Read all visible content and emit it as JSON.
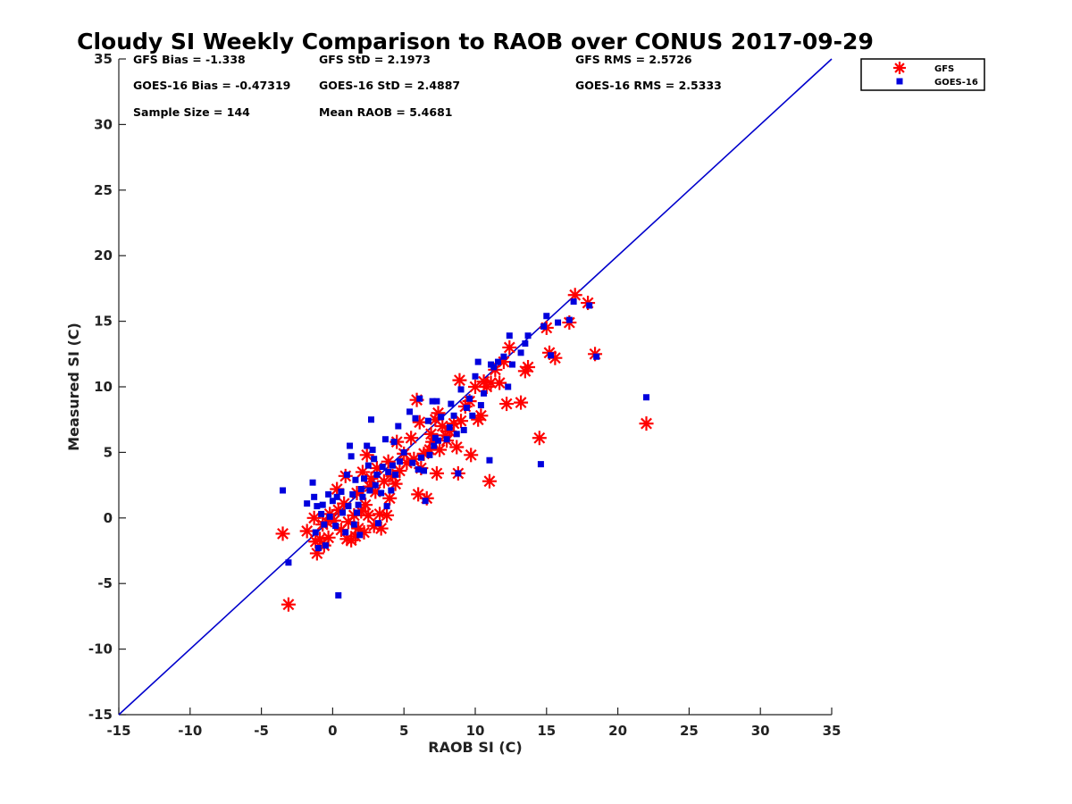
{
  "chart_data": {
    "type": "scatter",
    "title": "Cloudy SI Weekly Comparison to RAOB over CONUS 2017-09-29",
    "xlabel": "RAOB SI (C)",
    "ylabel": "Measured SI (C)",
    "xlim": [
      -15,
      35
    ],
    "ylim": [
      -15,
      35
    ],
    "xticks": [
      -15,
      -10,
      -5,
      0,
      5,
      10,
      15,
      20,
      25,
      30,
      35
    ],
    "yticks": [
      -15,
      -10,
      -5,
      0,
      5,
      10,
      15,
      20,
      25,
      30,
      35
    ],
    "grid": false,
    "legend_position": "outside-top-right",
    "reference_line": {
      "from": [
        -15,
        -15
      ],
      "to": [
        35,
        35
      ],
      "color": "#0000cc"
    },
    "stats": [
      "GFS Bias = -1.338",
      "GFS StD = 2.1973",
      "GFS RMS = 2.5726",
      "GOES-16 Bias = -0.47319",
      "GOES-16 StD = 2.4887",
      "GOES-16 RMS = 2.5333",
      "Sample Size = 144",
      "Mean RAOB = 5.4681"
    ],
    "series": [
      {
        "name": "GFS",
        "marker": "asterisk",
        "color": "#ff0000",
        "points": [
          [
            -3.5,
            -1.2
          ],
          [
            -3.1,
            -6.6
          ],
          [
            -1.8,
            -1.0
          ],
          [
            -1.3,
            0.0
          ],
          [
            -1.2,
            -1.8
          ],
          [
            -1.1,
            -2.7
          ],
          [
            -0.9,
            -1.6
          ],
          [
            -0.7,
            -0.5
          ],
          [
            -0.6,
            -2.1
          ],
          [
            -0.4,
            -0.3
          ],
          [
            -0.3,
            -1.5
          ],
          [
            -0.2,
            0.3
          ],
          [
            0.1,
            -0.2
          ],
          [
            0.3,
            2.2
          ],
          [
            0.4,
            0.6
          ],
          [
            0.6,
            -0.9
          ],
          [
            0.8,
            1.1
          ],
          [
            0.9,
            3.2
          ],
          [
            1.0,
            -1.6
          ],
          [
            1.1,
            -0.3
          ],
          [
            1.3,
            -1.7
          ],
          [
            1.5,
            0.2
          ],
          [
            1.6,
            -1.4
          ],
          [
            1.7,
            1.9
          ],
          [
            1.8,
            -0.8
          ],
          [
            2.0,
            0.5
          ],
          [
            2.1,
            3.5
          ],
          [
            2.2,
            -1.1
          ],
          [
            2.3,
            1.0
          ],
          [
            2.4,
            4.8
          ],
          [
            2.5,
            0.2
          ],
          [
            2.6,
            2.4
          ],
          [
            2.7,
            3.0
          ],
          [
            2.9,
            -0.6
          ],
          [
            3.0,
            2.0
          ],
          [
            3.1,
            3.8
          ],
          [
            3.3,
            0.3
          ],
          [
            3.4,
            -0.8
          ],
          [
            3.6,
            2.8
          ],
          [
            3.8,
            0.2
          ],
          [
            3.9,
            4.3
          ],
          [
            4.0,
            1.5
          ],
          [
            4.2,
            3.2
          ],
          [
            4.4,
            2.6
          ],
          [
            4.5,
            5.8
          ],
          [
            4.7,
            3.6
          ],
          [
            5.0,
            4.9
          ],
          [
            5.2,
            4.2
          ],
          [
            5.5,
            6.1
          ],
          [
            5.7,
            4.5
          ],
          [
            5.9,
            9.0
          ],
          [
            6.0,
            1.8
          ],
          [
            6.1,
            7.3
          ],
          [
            6.2,
            3.8
          ],
          [
            6.4,
            4.9
          ],
          [
            6.6,
            1.5
          ],
          [
            6.8,
            5.2
          ],
          [
            6.9,
            6.4
          ],
          [
            7.0,
            5.8
          ],
          [
            7.2,
            7.5
          ],
          [
            7.3,
            3.4
          ],
          [
            7.4,
            8.0
          ],
          [
            7.5,
            5.2
          ],
          [
            7.7,
            7.0
          ],
          [
            7.9,
            6.3
          ],
          [
            8.0,
            5.9
          ],
          [
            8.2,
            6.6
          ],
          [
            8.5,
            7.2
          ],
          [
            8.7,
            5.4
          ],
          [
            8.8,
            3.4
          ],
          [
            8.9,
            10.5
          ],
          [
            9.0,
            7.4
          ],
          [
            9.3,
            8.5
          ],
          [
            9.6,
            8.9
          ],
          [
            9.7,
            4.8
          ],
          [
            10.0,
            10.0
          ],
          [
            10.2,
            7.5
          ],
          [
            10.4,
            7.8
          ],
          [
            10.6,
            10.4
          ],
          [
            10.8,
            10.0
          ],
          [
            11.0,
            2.8
          ],
          [
            11.1,
            10.3
          ],
          [
            11.4,
            11.3
          ],
          [
            11.7,
            10.3
          ],
          [
            12.0,
            11.9
          ],
          [
            12.2,
            8.7
          ],
          [
            12.4,
            13.0
          ],
          [
            13.2,
            8.8
          ],
          [
            13.5,
            11.2
          ],
          [
            13.7,
            11.5
          ],
          [
            14.5,
            6.1
          ],
          [
            15.0,
            14.5
          ],
          [
            15.2,
            12.6
          ],
          [
            15.6,
            12.2
          ],
          [
            16.6,
            14.9
          ],
          [
            17.0,
            17.0
          ],
          [
            17.9,
            16.4
          ],
          [
            18.4,
            12.5
          ],
          [
            22.0,
            7.2
          ]
        ]
      },
      {
        "name": "GOES-16",
        "marker": "square",
        "color": "#0000dd",
        "points": [
          [
            -3.5,
            2.1
          ],
          [
            -3.1,
            -3.4
          ],
          [
            -1.8,
            1.1
          ],
          [
            -1.4,
            2.7
          ],
          [
            -1.3,
            1.6
          ],
          [
            -1.2,
            -1.1
          ],
          [
            -1.1,
            0.9
          ],
          [
            -1.0,
            -2.3
          ],
          [
            -0.8,
            0.3
          ],
          [
            -0.7,
            1.0
          ],
          [
            -0.6,
            -0.5
          ],
          [
            -0.5,
            -2.1
          ],
          [
            -0.3,
            1.8
          ],
          [
            -0.2,
            0.1
          ],
          [
            0.0,
            1.3
          ],
          [
            0.2,
            -0.6
          ],
          [
            0.3,
            1.6
          ],
          [
            0.4,
            -5.9
          ],
          [
            0.6,
            2.0
          ],
          [
            0.7,
            0.4
          ],
          [
            0.9,
            -1.1
          ],
          [
            1.0,
            3.3
          ],
          [
            1.1,
            0.9
          ],
          [
            1.2,
            5.5
          ],
          [
            1.3,
            4.7
          ],
          [
            1.4,
            1.8
          ],
          [
            1.5,
            -0.5
          ],
          [
            1.6,
            2.9
          ],
          [
            1.7,
            0.4
          ],
          [
            1.8,
            1.0
          ],
          [
            1.9,
            -1.3
          ],
          [
            2.0,
            2.2
          ],
          [
            2.1,
            1.6
          ],
          [
            2.2,
            3.0
          ],
          [
            2.4,
            5.5
          ],
          [
            2.5,
            4.0
          ],
          [
            2.6,
            2.1
          ],
          [
            2.7,
            7.5
          ],
          [
            2.8,
            5.2
          ],
          [
            2.9,
            4.5
          ],
          [
            3.0,
            2.5
          ],
          [
            3.1,
            3.3
          ],
          [
            3.2,
            -0.4
          ],
          [
            3.4,
            1.9
          ],
          [
            3.5,
            3.9
          ],
          [
            3.7,
            6.0
          ],
          [
            3.8,
            0.9
          ],
          [
            3.9,
            3.5
          ],
          [
            4.1,
            2.1
          ],
          [
            4.2,
            4.0
          ],
          [
            4.3,
            5.8
          ],
          [
            4.4,
            3.3
          ],
          [
            4.6,
            7.0
          ],
          [
            4.7,
            4.3
          ],
          [
            5.0,
            5.0
          ],
          [
            5.4,
            8.1
          ],
          [
            5.6,
            4.2
          ],
          [
            5.8,
            7.6
          ],
          [
            6.0,
            3.7
          ],
          [
            6.1,
            9.1
          ],
          [
            6.2,
            4.6
          ],
          [
            6.4,
            3.6
          ],
          [
            6.5,
            1.3
          ],
          [
            6.7,
            7.4
          ],
          [
            6.8,
            4.8
          ],
          [
            7.0,
            8.9
          ],
          [
            7.1,
            5.5
          ],
          [
            7.2,
            6.1
          ],
          [
            7.3,
            8.9
          ],
          [
            7.4,
            5.9
          ],
          [
            7.6,
            7.7
          ],
          [
            8.0,
            6.0
          ],
          [
            8.2,
            6.9
          ],
          [
            8.3,
            8.7
          ],
          [
            8.5,
            7.8
          ],
          [
            8.7,
            6.4
          ],
          [
            8.8,
            3.4
          ],
          [
            9.0,
            9.8
          ],
          [
            9.2,
            6.7
          ],
          [
            9.4,
            8.4
          ],
          [
            9.6,
            9.1
          ],
          [
            9.8,
            7.8
          ],
          [
            10.0,
            10.8
          ],
          [
            10.2,
            11.9
          ],
          [
            10.4,
            8.6
          ],
          [
            10.6,
            9.5
          ],
          [
            11.0,
            4.4
          ],
          [
            11.1,
            11.7
          ],
          [
            11.3,
            11.5
          ],
          [
            11.6,
            11.9
          ],
          [
            12.0,
            12.3
          ],
          [
            12.3,
            10.0
          ],
          [
            12.4,
            13.9
          ],
          [
            12.6,
            11.7
          ],
          [
            13.2,
            12.6
          ],
          [
            13.5,
            13.3
          ],
          [
            13.7,
            13.9
          ],
          [
            14.6,
            4.1
          ],
          [
            14.8,
            14.6
          ],
          [
            15.0,
            15.4
          ],
          [
            15.3,
            12.4
          ],
          [
            15.8,
            14.9
          ],
          [
            16.6,
            15.1
          ],
          [
            16.9,
            16.5
          ],
          [
            18.0,
            16.2
          ],
          [
            18.5,
            12.3
          ],
          [
            22.0,
            9.2
          ]
        ]
      }
    ]
  }
}
